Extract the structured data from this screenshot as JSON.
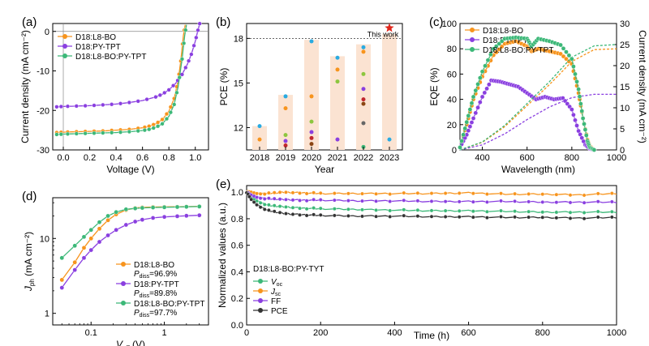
{
  "colors": {
    "orange": "#F7941D",
    "purple": "#8A3FE0",
    "green": "#3CB878",
    "dark": "#333333",
    "bar": "#FBE3D2",
    "star": "#E0261B"
  },
  "chart_data": [
    {
      "id": "a",
      "panel_label": "(a)",
      "type": "line",
      "xlabel": "Voltage (V)",
      "ylabel": "Current density (mA cm⁻²)",
      "xlim": [
        -0.08,
        1.1
      ],
      "ylim": [
        -30,
        2
      ],
      "xticks": [
        "0.0",
        "0.2",
        "0.4",
        "0.6",
        "0.8",
        "1.0"
      ],
      "yticks": [
        "0",
        "-10",
        "-20",
        "-30"
      ],
      "legend_position": "top-left",
      "series": [
        {
          "name": "D18:L8-BO",
          "color": "orange",
          "jsc": -25.5,
          "voc": 0.91,
          "x": [
            -0.05,
            0.0,
            0.1,
            0.2,
            0.3,
            0.4,
            0.5,
            0.6,
            0.65,
            0.7,
            0.75,
            0.8,
            0.84,
            0.87,
            0.89,
            0.91,
            0.93
          ],
          "y": [
            -25.6,
            -25.5,
            -25.4,
            -25.3,
            -25.2,
            -25.0,
            -24.8,
            -24.4,
            -24.0,
            -23.4,
            -22.3,
            -20.2,
            -17.0,
            -12.5,
            -7.5,
            -1.0,
            3.0
          ]
        },
        {
          "name": "D18:PY-TPT",
          "color": "purple",
          "jsc": -19.0,
          "voc": 1.02,
          "x": [
            -0.05,
            0.0,
            0.1,
            0.2,
            0.3,
            0.4,
            0.5,
            0.6,
            0.7,
            0.75,
            0.8,
            0.85,
            0.9,
            0.94,
            0.97,
            1.0,
            1.02,
            1.04
          ],
          "y": [
            -19.1,
            -19.0,
            -18.9,
            -18.8,
            -18.6,
            -18.4,
            -18.0,
            -17.5,
            -16.6,
            -15.9,
            -14.8,
            -13.2,
            -10.9,
            -8.3,
            -5.8,
            -2.5,
            0.3,
            2.8
          ]
        },
        {
          "name": "D18:L8-BO:PY-TPT",
          "color": "green",
          "jsc": -26.0,
          "voc": 0.92,
          "x": [
            -0.05,
            0.0,
            0.1,
            0.2,
            0.3,
            0.4,
            0.5,
            0.6,
            0.65,
            0.7,
            0.75,
            0.8,
            0.84,
            0.87,
            0.9,
            0.92,
            0.94
          ],
          "y": [
            -26.1,
            -26.0,
            -25.9,
            -25.8,
            -25.7,
            -25.6,
            -25.4,
            -25.1,
            -24.8,
            -24.3,
            -23.4,
            -21.5,
            -18.5,
            -14.0,
            -7.0,
            -1.0,
            3.0
          ]
        }
      ]
    },
    {
      "id": "b",
      "panel_label": "(b)",
      "type": "bar",
      "xlabel": "Year",
      "ylabel": "PCE (%)",
      "ylim": [
        10.5,
        19
      ],
      "yticks": [
        "12",
        "15",
        "18"
      ],
      "categories": [
        "2018",
        "2019",
        "2020",
        "2021",
        "2022",
        "2023"
      ],
      "values": [
        12.1,
        14.2,
        17.9,
        16.8,
        17.6,
        18.3
      ],
      "points": [
        [
          12.1,
          11.2
        ],
        [
          14.1,
          13.3,
          11.5,
          11.1,
          10.8
        ],
        [
          17.8,
          14.1,
          12.4,
          11.7,
          11.3,
          10.9
        ],
        [
          16.7,
          15.9,
          15.1,
          11.2
        ],
        [
          17.4,
          17.1,
          15.6,
          14.6,
          13.9,
          13.6,
          12.3,
          10.7
        ],
        [
          11.2
        ]
      ],
      "point_colors": [
        "#29ABE2",
        "#F7941D",
        "#8DC63F",
        "#8A3FE0",
        "#C1272D",
        "#8B4513",
        "#666666",
        "#3CB878"
      ],
      "reference_line": 18.0,
      "highlight": {
        "year": "2023",
        "value": 18.7,
        "label": "This work"
      }
    },
    {
      "id": "c",
      "panel_label": "(c)",
      "type": "line",
      "xlabel": "Wavelength (nm)",
      "ylabel": "EQE (%)",
      "y2label": "Current density (mA cm⁻²)",
      "xlim": [
        300,
        1000
      ],
      "ylim": [
        0,
        100
      ],
      "y2lim": [
        0,
        30
      ],
      "xticks": [
        "400",
        "600",
        "800",
        "1000"
      ],
      "yticks": [
        "0",
        "20",
        "40",
        "60",
        "80",
        "100"
      ],
      "y2ticks": [
        "0",
        "5",
        "10",
        "15",
        "20",
        "25",
        "30"
      ],
      "legend_position": "top-left",
      "series": [
        {
          "name": "D18:L8-BO",
          "color": "orange",
          "x": [
            300,
            330,
            360,
            400,
            450,
            500,
            550,
            600,
            620,
            650,
            700,
            750,
            800,
            830,
            850,
            870,
            880,
            900
          ],
          "y": [
            2,
            20,
            40,
            58,
            75,
            84,
            86,
            82,
            78,
            80,
            78,
            76,
            68,
            45,
            25,
            8,
            3,
            0
          ],
          "jsc_x": [
            300,
            400,
            500,
            600,
            700,
            800,
            900,
            1000
          ],
          "jsc_y": [
            0,
            1.8,
            5.5,
            10.5,
            15.5,
            21,
            23.8,
            24
          ]
        },
        {
          "name": "D18:PY-TPT",
          "color": "purple",
          "x": [
            300,
            330,
            360,
            400,
            440,
            480,
            520,
            560,
            600,
            640,
            680,
            720,
            760,
            800,
            830,
            860,
            880,
            900
          ],
          "y": [
            2,
            12,
            25,
            42,
            55,
            54,
            52,
            50,
            45,
            40,
            42,
            40,
            41,
            32,
            15,
            4,
            1,
            0
          ],
          "jsc_x": [
            300,
            400,
            500,
            600,
            700,
            800,
            900,
            1000
          ],
          "jsc_y": [
            0,
            1.2,
            3.8,
            7.2,
            10.2,
            12.4,
            13.2,
            13.2
          ]
        },
        {
          "name": "D18:L8-BO:PY-TPT",
          "color": "green",
          "x": [
            300,
            330,
            360,
            400,
            450,
            500,
            550,
            600,
            620,
            650,
            700,
            750,
            800,
            830,
            850,
            870,
            880,
            900
          ],
          "y": [
            2,
            22,
            42,
            62,
            80,
            88,
            89,
            88,
            82,
            88,
            86,
            83,
            72,
            48,
            25,
            7,
            2,
            0
          ],
          "jsc_x": [
            300,
            400,
            500,
            600,
            700,
            800,
            900,
            1000
          ],
          "jsc_y": [
            0,
            1.9,
            5.8,
            11,
            16.2,
            22,
            24.7,
            25
          ]
        }
      ]
    },
    {
      "id": "d",
      "panel_label": "(d)",
      "type": "scatter",
      "xscale": "log",
      "yscale": "log",
      "xlabel_main": "V",
      "xlabel_sub": "eff",
      "xlabel_unit": " (V)",
      "ylabel_main": "J",
      "ylabel_sub": "ph",
      "ylabel_unit": " (mA cm⁻²)",
      "xlim": [
        0.03,
        4
      ],
      "ylim": [
        0.7,
        35
      ],
      "xticks": [
        {
          "v": 0.1,
          "label": "0.1"
        },
        {
          "v": 1,
          "label": "1"
        }
      ],
      "yticks": [
        {
          "v": 1,
          "label": "1"
        },
        {
          "v": 10,
          "label": "10"
        }
      ],
      "legend_position": "bottom-right",
      "series": [
        {
          "name": "D18:L8-BO",
          "pdiss_label": "P",
          "pdiss_sub": "diss",
          "pdiss_value": "=96.9%",
          "color": "orange",
          "x": [
            0.04,
            0.06,
            0.08,
            0.1,
            0.13,
            0.17,
            0.22,
            0.3,
            0.4,
            0.5,
            0.7,
            1,
            1.5,
            2,
            3
          ],
          "y": [
            2.8,
            4.8,
            7.5,
            10,
            13.5,
            17.5,
            21,
            24,
            25.5,
            26,
            26.3,
            26.4,
            26.5,
            26.6,
            26.8
          ]
        },
        {
          "name": "D18:PY-TPT",
          "pdiss_label": "P",
          "pdiss_sub": "diss",
          "pdiss_value": "=89.8%",
          "color": "purple",
          "x": [
            0.04,
            0.06,
            0.08,
            0.1,
            0.13,
            0.17,
            0.22,
            0.3,
            0.4,
            0.5,
            0.7,
            1,
            1.5,
            2,
            3
          ],
          "y": [
            2.2,
            3.8,
            5.5,
            7,
            9,
            11,
            13,
            15.2,
            16.8,
            17.8,
            18.8,
            19.4,
            19.8,
            20.1,
            20.4
          ]
        },
        {
          "name": "D18:L8-BO:PY-TPT",
          "pdiss_label": "P",
          "pdiss_sub": "diss",
          "pdiss_value": "=97.7%",
          "color": "green",
          "x": [
            0.04,
            0.06,
            0.08,
            0.1,
            0.13,
            0.17,
            0.22,
            0.3,
            0.4,
            0.5,
            0.7,
            1,
            1.5,
            2,
            3
          ],
          "y": [
            5.5,
            8,
            10.5,
            13,
            16.5,
            20,
            22.5,
            24.5,
            25.2,
            25.6,
            25.9,
            26.1,
            26.3,
            26.5,
            26.7
          ]
        }
      ]
    },
    {
      "id": "e",
      "panel_label": "(e)",
      "type": "line",
      "xlabel": "Time (h)",
      "ylabel": "Normalized values (a.u.)",
      "xlim": [
        0,
        1000
      ],
      "ylim": [
        0,
        1.05
      ],
      "xticks": [
        "0",
        "200",
        "400",
        "600",
        "800",
        "1000"
      ],
      "yticks": [
        "0.0",
        "0.2",
        "0.4",
        "0.6",
        "0.8",
        "1.0"
      ],
      "legend_title": "D18:L8-BO:PY-TYT",
      "legend_position": "bottom-left",
      "series": [
        {
          "name_main": "V",
          "name_sub": "oc",
          "color": "green",
          "x": [
            0,
            10,
            30,
            60,
            100,
            150,
            200,
            300,
            400,
            500,
            600,
            700,
            800,
            900,
            1000
          ],
          "y": [
            1.0,
            0.97,
            0.93,
            0.9,
            0.89,
            0.88,
            0.875,
            0.87,
            0.865,
            0.86,
            0.86,
            0.855,
            0.85,
            0.85,
            0.85
          ]
        },
        {
          "name_main": "J",
          "name_sub": "sc",
          "color": "orange",
          "x": [
            0,
            10,
            30,
            60,
            100,
            150,
            200,
            300,
            400,
            500,
            600,
            700,
            800,
            900,
            1000
          ],
          "y": [
            1.0,
            1.0,
            0.99,
            0.99,
            1.0,
            0.995,
            0.99,
            0.99,
            0.99,
            0.99,
            0.995,
            0.985,
            0.985,
            0.98,
            0.99
          ]
        },
        {
          "name_main": "FF",
          "name_sub": "",
          "color": "purple",
          "x": [
            0,
            10,
            30,
            60,
            100,
            150,
            200,
            300,
            400,
            500,
            600,
            700,
            800,
            900,
            1000
          ],
          "y": [
            1.0,
            0.98,
            0.96,
            0.95,
            0.945,
            0.94,
            0.94,
            0.935,
            0.935,
            0.93,
            0.93,
            0.93,
            0.925,
            0.925,
            0.925
          ]
        },
        {
          "name_main": "PCE",
          "name_sub": "",
          "color": "dark",
          "x": [
            0,
            10,
            30,
            60,
            100,
            150,
            200,
            300,
            400,
            500,
            600,
            700,
            800,
            900,
            1000
          ],
          "y": [
            1.0,
            0.95,
            0.9,
            0.86,
            0.84,
            0.83,
            0.825,
            0.82,
            0.82,
            0.815,
            0.815,
            0.81,
            0.81,
            0.805,
            0.81
          ]
        }
      ]
    }
  ]
}
